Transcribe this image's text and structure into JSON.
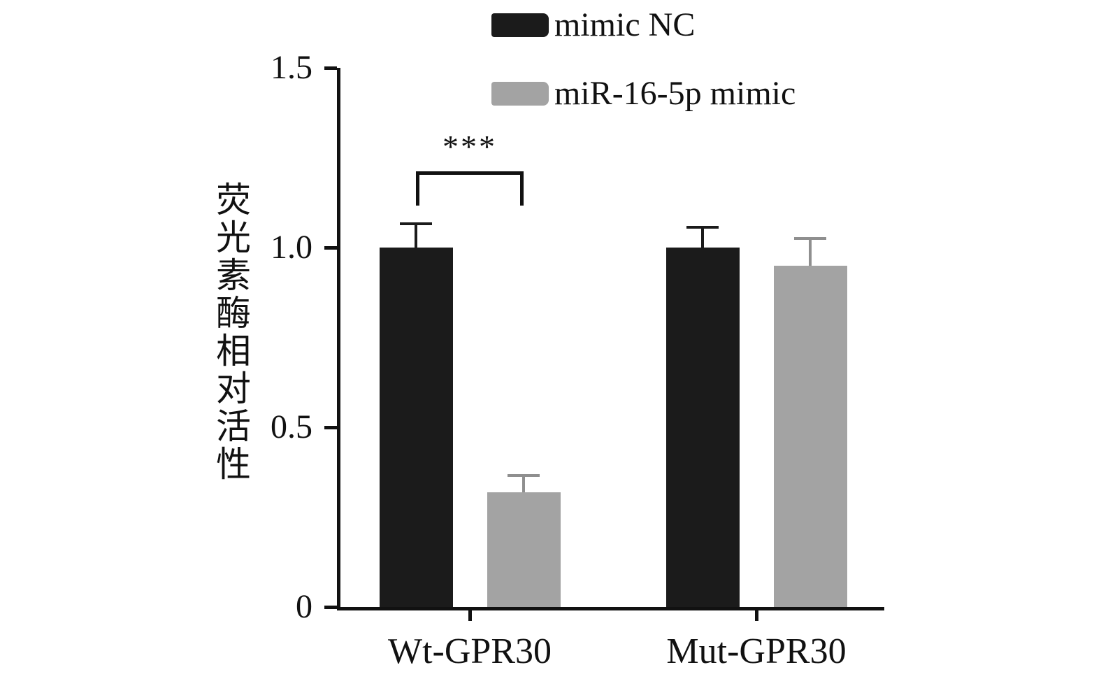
{
  "chart_data": {
    "type": "bar",
    "title": "",
    "xlabel": "",
    "ylabel": "荧光素酶相对活性",
    "ylim": [
      0,
      1.5
    ],
    "grid": false,
    "legend_position": "top",
    "yticks": [
      {
        "label": "1.5",
        "value": 1.5
      },
      {
        "label": "1.0",
        "value": 1.0
      },
      {
        "label": "0.5",
        "value": 0.5
      },
      {
        "label": "0",
        "value": 0
      }
    ],
    "categories": [
      "Wt-GPR30",
      "Mut-GPR30"
    ],
    "series": [
      {
        "name": "mimic NC",
        "color": "#1b1b1b",
        "error_color": "#1b1b1b",
        "values": [
          1.0,
          1.0
        ],
        "errors": [
          0.07,
          0.06
        ]
      },
      {
        "name": "miR-16-5p mimic",
        "color": "#a3a3a3",
        "error_color": "#8f8f8f",
        "values": [
          0.32,
          0.95
        ],
        "errors": [
          0.05,
          0.08
        ]
      }
    ],
    "significance": {
      "label": "***",
      "group": "Wt-GPR30",
      "between": [
        "mimic NC",
        "miR-16-5p mimic"
      ]
    }
  }
}
